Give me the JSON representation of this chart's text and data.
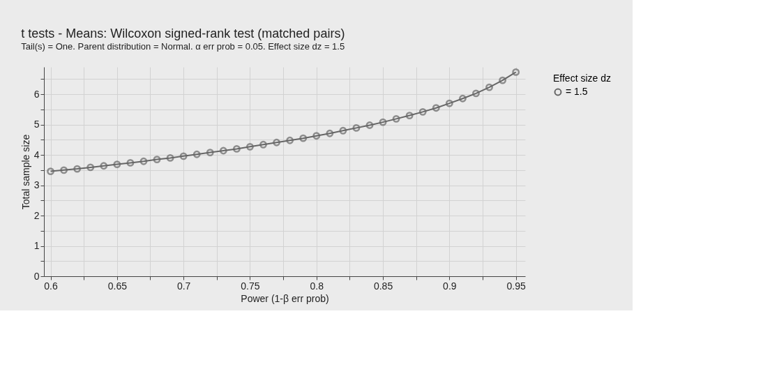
{
  "chart_data": {
    "type": "line",
    "title": "t tests - Means: Wilcoxon signed-rank test (matched pairs)",
    "subtitle": "Tail(s) = One. Parent distribution = Normal. α err prob = 0.05. Effect size dz = 1.5",
    "xlabel": "Power (1-β err prob)",
    "ylabel": "Total sample size",
    "legend_title": "Effect size dz",
    "x": [
      0.6,
      0.61,
      0.62,
      0.63,
      0.64,
      0.65,
      0.66,
      0.67,
      0.68,
      0.69,
      0.7,
      0.71,
      0.72,
      0.73,
      0.74,
      0.75,
      0.76,
      0.77,
      0.78,
      0.79,
      0.8,
      0.81,
      0.82,
      0.83,
      0.84,
      0.85,
      0.86,
      0.87,
      0.88,
      0.89,
      0.9,
      0.91,
      0.92,
      0.93,
      0.94,
      0.95
    ],
    "series": [
      {
        "name": "= 1.5",
        "color": "#666666",
        "values": [
          3.46,
          3.5,
          3.54,
          3.59,
          3.64,
          3.69,
          3.74,
          3.79,
          3.85,
          3.9,
          3.96,
          4.02,
          4.08,
          4.14,
          4.2,
          4.27,
          4.34,
          4.41,
          4.48,
          4.55,
          4.63,
          4.71,
          4.8,
          4.89,
          4.98,
          5.08,
          5.19,
          5.3,
          5.42,
          5.55,
          5.7,
          5.86,
          6.03,
          6.23,
          6.46,
          6.73
        ]
      }
    ],
    "xlim": [
      0.595,
      0.957
    ],
    "xticks": [
      0.6,
      {
        "value": 0.625,
        "label": null
      },
      0.65,
      {
        "value": 0.675,
        "label": null
      },
      0.7,
      {
        "value": 0.725,
        "label": null
      },
      0.75,
      {
        "value": 0.775,
        "label": null
      },
      0.8,
      {
        "value": 0.825,
        "label": null
      },
      0.85,
      {
        "value": 0.875,
        "label": null
      },
      0.9,
      {
        "value": 0.925,
        "label": null
      },
      0.95
    ],
    "ylim": [
      0,
      6.9
    ],
    "yticks": [
      0,
      {
        "value": 0.5,
        "label": null
      },
      1,
      {
        "value": 1.5,
        "label": null
      },
      2,
      {
        "value": 2.5,
        "label": null
      },
      3,
      {
        "value": 3.5,
        "label": null
      },
      4,
      {
        "value": 4.5,
        "label": null
      },
      5,
      {
        "value": 5.5,
        "label": null
      },
      6,
      {
        "value": 6.5,
        "label": null
      }
    ],
    "grid": true,
    "legend": "right",
    "marker": "circle",
    "line_style": "solid"
  }
}
